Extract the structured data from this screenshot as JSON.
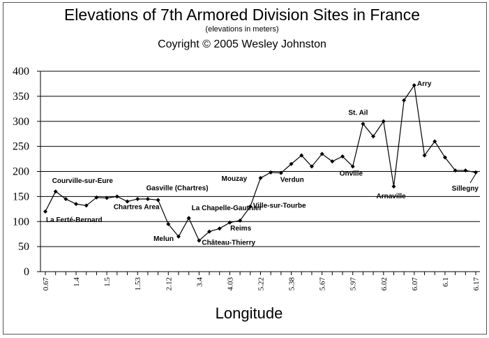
{
  "chart_data": {
    "type": "line",
    "title": "Elevations of 7th Armored Division Sites in France",
    "subtitle": "(elevations in meters)",
    "copyright": "Coyright © 2005 Wesley Johnston",
    "xlabel": "Longitude",
    "ylabel": "",
    "ylim": [
      0,
      400
    ],
    "yticks": [
      0,
      50,
      100,
      150,
      200,
      250,
      300,
      350,
      400
    ],
    "grid": "horizontal",
    "x_tick_labels": [
      "0.67",
      "1.4",
      "1.5",
      "1.53",
      "2.12",
      "3.4",
      "4.03",
      "5.22",
      "5.38",
      "5.67",
      "5.97",
      "6.02",
      "6.07",
      "6.1",
      "6.17"
    ],
    "series": [
      {
        "values": [
          120,
          160,
          145,
          135,
          132,
          148,
          147,
          150,
          140,
          145,
          145,
          143,
          95,
          70,
          107,
          62,
          80,
          86,
          98,
          102,
          130,
          187,
          198,
          197,
          215,
          232,
          210,
          235,
          220,
          230,
          210,
          295,
          270,
          300,
          170,
          342,
          372,
          232,
          260,
          228,
          202,
          202,
          198
        ]
      }
    ],
    "annotations": [
      {
        "label": "Courville-sur-Eure",
        "index": 1
      },
      {
        "label": "La Ferté-Bernard",
        "index": 0
      },
      {
        "label": "Chartres Area",
        "index": 7
      },
      {
        "label": "Gasville (Chartres)",
        "index": 11
      },
      {
        "label": "Melun",
        "index": 13
      },
      {
        "label": "La Chapelle-Gauthier",
        "index": 14
      },
      {
        "label": "Château-Thierry",
        "index": 15
      },
      {
        "label": "Reims",
        "index": 19
      },
      {
        "label": "Ville-sur-Tourbe",
        "index": 20
      },
      {
        "label": "Mouzay",
        "index": 21
      },
      {
        "label": "Verdun",
        "index": 23
      },
      {
        "label": "Onville",
        "index": 30
      },
      {
        "label": "St. Ail",
        "index": 31
      },
      {
        "label": "Arnaville",
        "index": 34
      },
      {
        "label": "Arry",
        "index": 36
      },
      {
        "label": "Sillegny",
        "index": 42
      }
    ]
  }
}
